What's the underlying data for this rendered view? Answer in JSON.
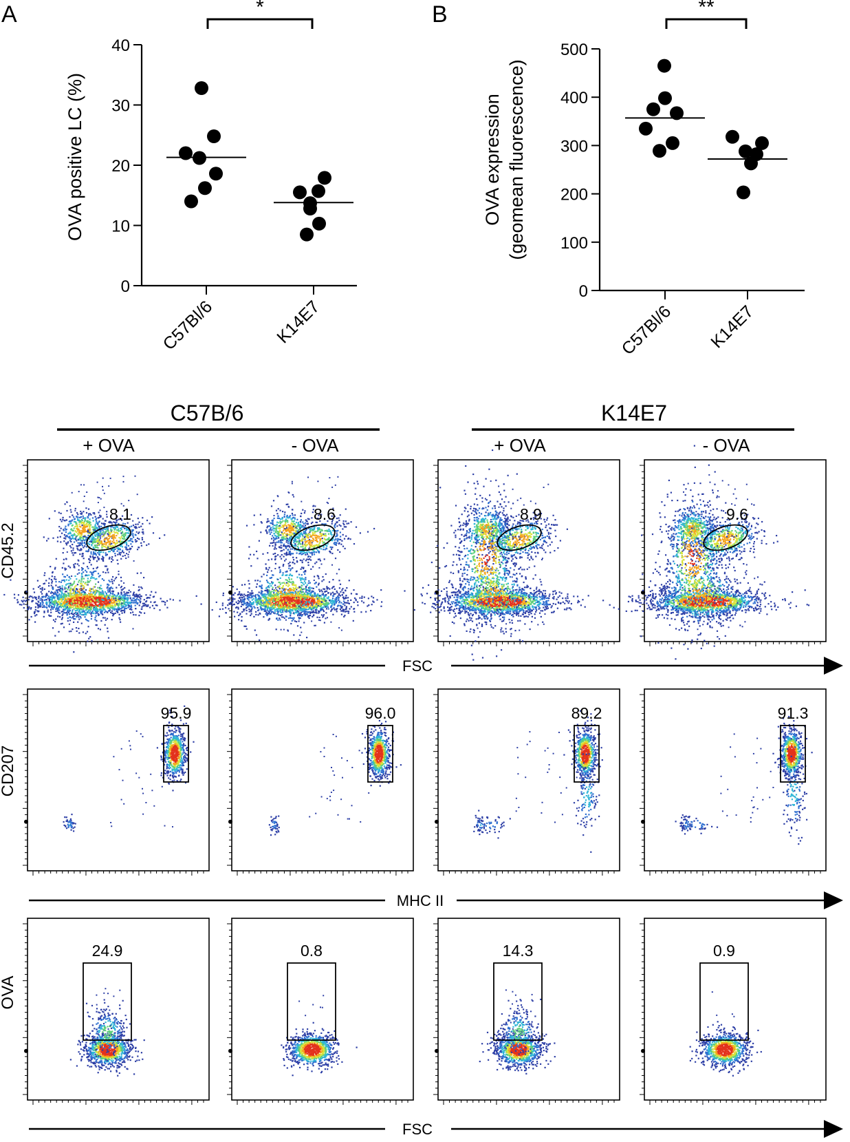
{
  "panels": {
    "a": {
      "letter": "A"
    },
    "b": {
      "letter": "B"
    }
  },
  "chart_data": [
    {
      "type": "scatter",
      "panel": "A",
      "ylabel": "OVA positive LC (%)",
      "ylim": [
        0,
        40
      ],
      "yticks": [
        "0",
        "10",
        "20",
        "30",
        "40"
      ],
      "categories": [
        "C57Bl/6",
        "K14E7"
      ],
      "series": [
        {
          "points": [
            32.8,
            24.8,
            22.0,
            21.2,
            18.6,
            16.2,
            14.0
          ],
          "mean": 21.3
        },
        {
          "points": [
            17.9,
            15.5,
            15.7,
            13.7,
            12.8,
            10.3,
            8.5
          ],
          "mean": 13.8
        }
      ],
      "significance": "*"
    },
    {
      "type": "scatter",
      "panel": "B",
      "ylabel_lines": [
        "OVA expression",
        "(geomean fluorescence)"
      ],
      "ylim": [
        0,
        500
      ],
      "yticks": [
        "0",
        "100",
        "200",
        "300",
        "400",
        "500"
      ],
      "categories": [
        "C57Bl/6",
        "K14E7"
      ],
      "series": [
        {
          "points": [
            465,
            398,
            375,
            367,
            335,
            305,
            289
          ],
          "mean": 357
        },
        {
          "points": [
            318,
            305,
            288,
            282,
            263,
            203
          ],
          "mean": 272
        }
      ],
      "significance": "**"
    },
    {
      "type": "flow-cytometry",
      "groups": [
        "C57B/6",
        "K14E7"
      ],
      "conditions": [
        "+ OVA",
        "- OVA",
        "+ OVA",
        "- OVA"
      ],
      "rows": [
        {
          "ylabel": "CD45.2",
          "xlabel": "FSC",
          "gate_values": [
            "8.1",
            "8.6",
            "8.9",
            "9.6"
          ]
        },
        {
          "ylabel": "CD207",
          "xlabel": "MHC II",
          "gate_values": [
            "95.9",
            "96.0",
            "89.2",
            "91.3"
          ]
        },
        {
          "ylabel": "OVA",
          "xlabel": "FSC",
          "gate_values": [
            "24.9",
            "0.8",
            "14.3",
            "0.9"
          ]
        }
      ]
    }
  ]
}
